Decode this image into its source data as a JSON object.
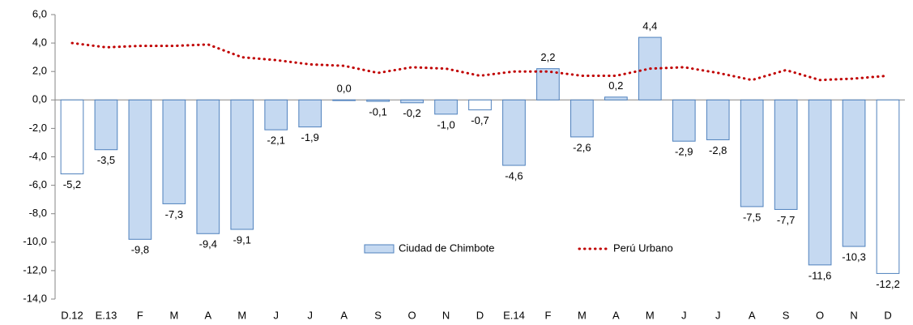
{
  "chart_data": {
    "type": "bar",
    "categories": [
      "D.12",
      "E.13",
      "F",
      "M",
      "A",
      "M",
      "J",
      "J",
      "A",
      "S",
      "O",
      "N",
      "D",
      "E.14",
      "F",
      "M",
      "A",
      "M",
      "J",
      "J",
      "A",
      "S",
      "O",
      "N",
      "D"
    ],
    "series": [
      {
        "name": "Ciudad de Chimbote",
        "type": "bar",
        "color": "#c5d9f1",
        "stroke": "#4f81bd",
        "colors": [
          "#ffffff",
          "#c5d9f1",
          "#c5d9f1",
          "#c5d9f1",
          "#c5d9f1",
          "#c5d9f1",
          "#c5d9f1",
          "#c5d9f1",
          "#c5d9f1",
          "#c5d9f1",
          "#c5d9f1",
          "#c5d9f1",
          "#ffffff",
          "#c5d9f1",
          "#c5d9f1",
          "#c5d9f1",
          "#c5d9f1",
          "#c5d9f1",
          "#c5d9f1",
          "#c5d9f1",
          "#c5d9f1",
          "#c5d9f1",
          "#c5d9f1",
          "#c5d9f1",
          "#ffffff"
        ],
        "values": [
          -5.2,
          -3.5,
          -9.8,
          -7.3,
          -9.4,
          -9.1,
          -2.1,
          -1.9,
          0.0,
          -0.1,
          -0.2,
          -1.0,
          -0.7,
          -4.6,
          2.2,
          -2.6,
          0.2,
          4.4,
          -2.9,
          -2.8,
          -7.5,
          -7.7,
          -11.6,
          -10.3,
          -12.2
        ],
        "value_labels": [
          "-5,2",
          "-3,5",
          "-9,8",
          "-7,3",
          "-9,4",
          "-9,1",
          "-2,1",
          "-1,9",
          "0,0",
          "-0,1",
          "-0,2",
          "-1,0",
          "-0,7",
          "-4,6",
          "2,2",
          "-2,6",
          "0,2",
          "4,4",
          "-2,9",
          "-2,8",
          "-7,5",
          "-7,7",
          "-11,6",
          "-10,3",
          "-12,2"
        ]
      },
      {
        "name": "Perú Urbano",
        "type": "line",
        "color": "#c00000",
        "values": [
          4.0,
          3.7,
          3.8,
          3.8,
          3.9,
          3.0,
          2.8,
          2.5,
          2.4,
          1.9,
          2.3,
          2.2,
          1.7,
          2.0,
          2.0,
          1.7,
          1.7,
          2.2,
          2.3,
          1.9,
          1.4,
          2.1,
          1.4,
          1.5,
          1.7
        ]
      }
    ],
    "ylim": [
      -14,
      6
    ],
    "yticks": [
      {
        "value": -14,
        "label": "-14,0"
      },
      {
        "value": -12,
        "label": "-12,0"
      },
      {
        "value": -10,
        "label": "-10,0"
      },
      {
        "value": -8,
        "label": "-8,0"
      },
      {
        "value": -6,
        "label": "-6,0"
      },
      {
        "value": -4,
        "label": "-4,0"
      },
      {
        "value": -2,
        "label": "-2,0"
      },
      {
        "value": 0,
        "label": "0,0"
      },
      {
        "value": 2,
        "label": "2,0"
      },
      {
        "value": 4,
        "label": "4,0"
      },
      {
        "value": 6,
        "label": "6,0"
      }
    ],
    "grid": false,
    "legend": "bottom-center"
  }
}
